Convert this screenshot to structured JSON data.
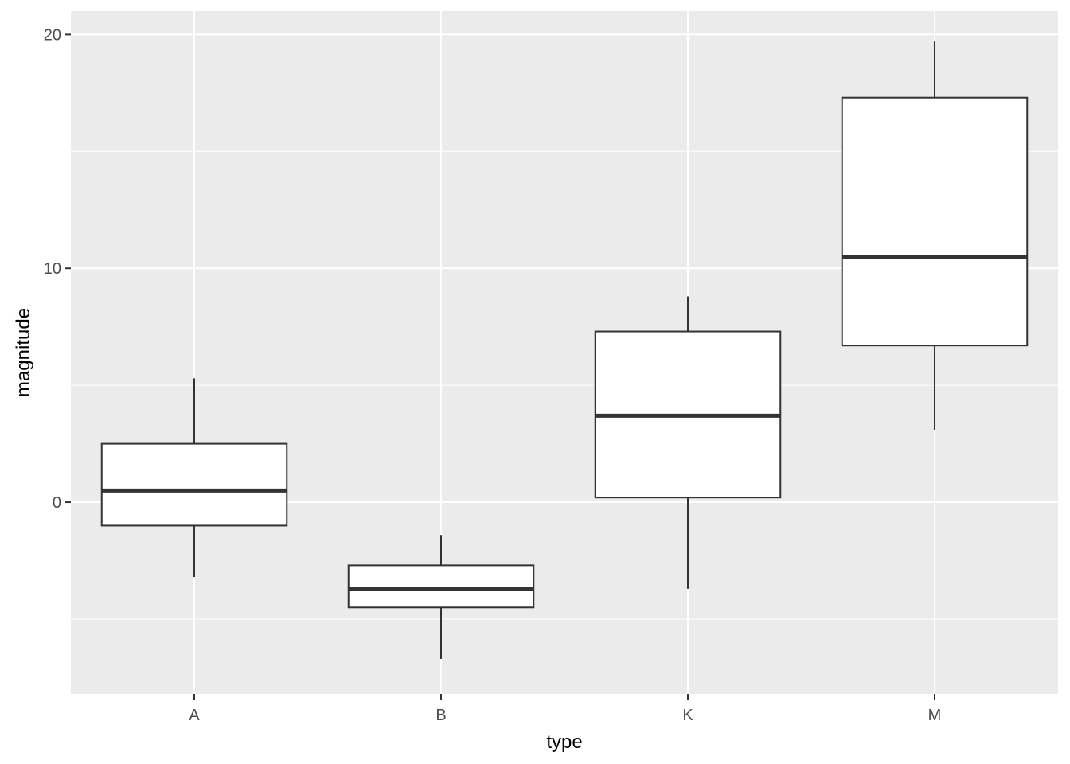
{
  "chart_data": {
    "type": "boxplot",
    "title": "",
    "xlabel": "type",
    "ylabel": "magnitude",
    "categories": [
      "A",
      "B",
      "K",
      "M"
    ],
    "boxes": [
      {
        "category": "A",
        "whisker_low": -3.2,
        "q1": -1.0,
        "median": 0.5,
        "q3": 2.5,
        "whisker_high": 5.3
      },
      {
        "category": "B",
        "whisker_low": -6.7,
        "q1": -4.5,
        "median": -3.7,
        "q3": -2.7,
        "whisker_high": -1.4
      },
      {
        "category": "K",
        "whisker_low": -3.7,
        "q1": 0.2,
        "median": 3.7,
        "q3": 7.3,
        "whisker_high": 8.8
      },
      {
        "category": "M",
        "whisker_low": 3.1,
        "q1": 6.7,
        "median": 10.5,
        "q3": 17.3,
        "whisker_high": 19.7
      }
    ],
    "ylim": [
      -8.2,
      21.0
    ],
    "y_ticks": [
      0,
      10,
      20
    ],
    "y_tick_labels": [
      "0",
      "10",
      "20"
    ],
    "y_minor_ticks": [
      -5,
      5,
      15
    ],
    "grid": true,
    "legend": "none",
    "colors": {
      "panel_background": "#ebebeb",
      "grid_line": "#ffffff",
      "box_fill": "#ffffff",
      "box_stroke": "#333333",
      "tick_label": "#4d4d4d",
      "axis_title": "#000000"
    }
  }
}
